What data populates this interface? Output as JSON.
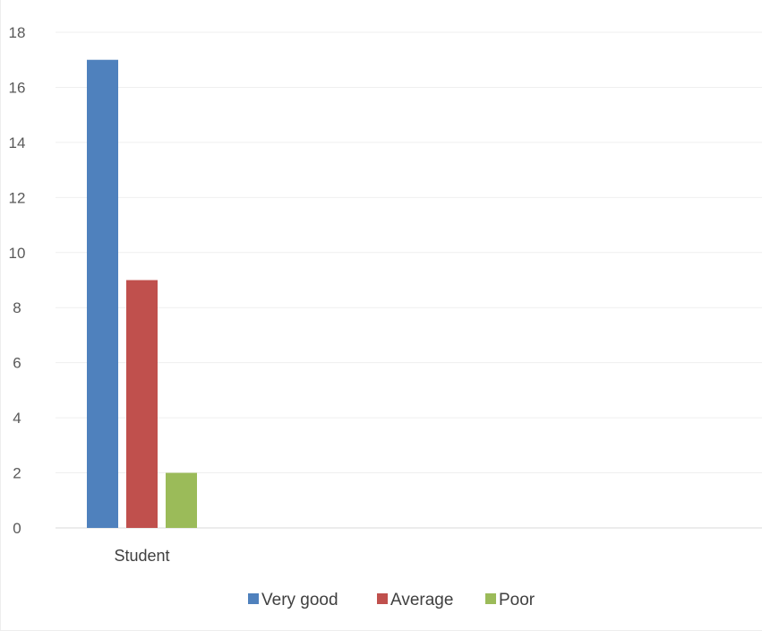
{
  "chart_data": {
    "type": "bar",
    "categories": [
      "Student"
    ],
    "series": [
      {
        "name": "Very good",
        "values": [
          17
        ],
        "color": "#4F81BD"
      },
      {
        "name": "Average",
        "values": [
          9
        ],
        "color": "#C0504D"
      },
      {
        "name": "Poor",
        "values": [
          2
        ],
        "color": "#9BBB59"
      }
    ],
    "title": "",
    "xlabel": "",
    "ylabel": "",
    "ylim": [
      0,
      18
    ],
    "yticks": [
      "0",
      "2",
      "4",
      "6",
      "8",
      "10",
      "12",
      "14",
      "16",
      "18"
    ],
    "grid": true,
    "legend": "bottom"
  }
}
